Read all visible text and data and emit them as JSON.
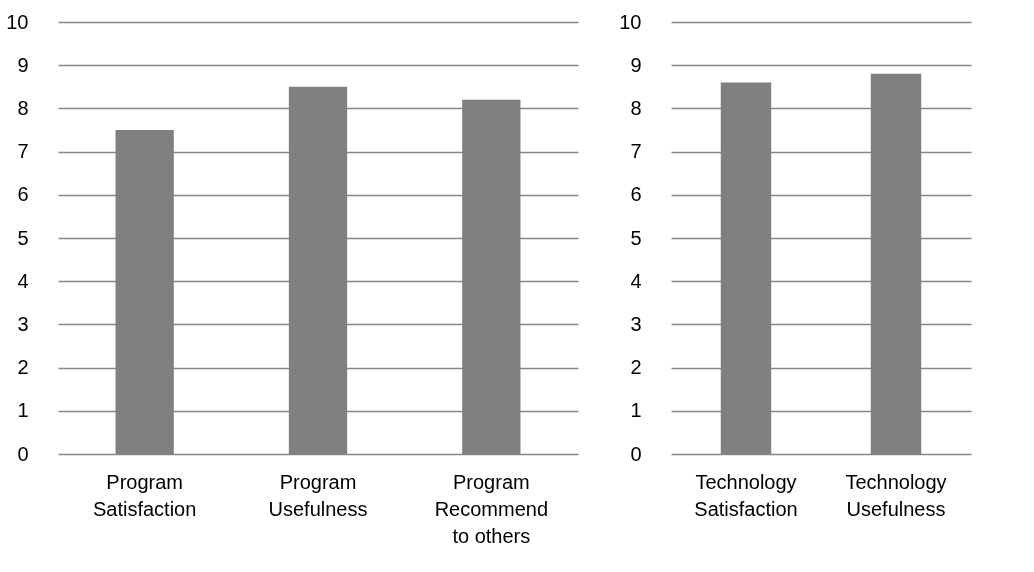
{
  "chart_data": [
    {
      "type": "bar",
      "categories": [
        "Program\nSatisfaction",
        "Program\nUsefulness",
        "Program\nRecommend\nto others"
      ],
      "values": [
        7.5,
        8.5,
        8.2
      ],
      "color": "#808080",
      "ylim": [
        0,
        10
      ],
      "yticks": [
        0,
        1,
        2,
        3,
        4,
        5,
        6,
        7,
        8,
        9,
        10
      ],
      "grid": "y"
    },
    {
      "type": "bar",
      "categories": [
        "Technology\nSatisfaction",
        "Technology\nUsefulness"
      ],
      "values": [
        8.6,
        8.8
      ],
      "color": "#808080",
      "ylim": [
        0,
        10
      ],
      "yticks": [
        0,
        1,
        2,
        3,
        4,
        5,
        6,
        7,
        8,
        9,
        10
      ],
      "grid": "y"
    }
  ]
}
